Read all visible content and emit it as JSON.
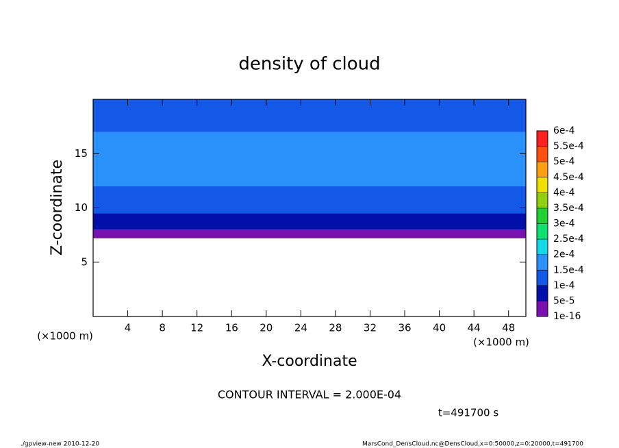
{
  "chart_data": {
    "type": "contour",
    "title": "density of cloud",
    "xlabel": "X-coordinate",
    "ylabel": "Z-coordinate",
    "xunit": "(×1000 m)",
    "yunit": "(×1000 m)",
    "xlim": [
      0,
      50
    ],
    "ylim": [
      0,
      20
    ],
    "xticks": [
      4,
      8,
      12,
      16,
      20,
      24,
      28,
      32,
      36,
      40,
      44,
      48
    ],
    "yticks": [
      5,
      10,
      15
    ],
    "z_edges": [
      7.2,
      8.0,
      9.5,
      12.0,
      17.0,
      20.0
    ],
    "values": [
      3e-05,
      7e-05,
      0.00011,
      0.00016,
      0.00012
    ],
    "levels": [
      {
        "value": 1e-16,
        "label": "1e-16"
      },
      {
        "value": 5e-05,
        "label": "5e-5"
      },
      {
        "value": 0.0001,
        "label": "1e-4"
      },
      {
        "value": 0.00015,
        "label": "1.5e-4"
      },
      {
        "value": 0.0002,
        "label": "2e-4"
      },
      {
        "value": 0.00025,
        "label": "2.5e-4"
      },
      {
        "value": 0.0003,
        "label": "3e-4"
      },
      {
        "value": 0.00035,
        "label": "3.5e-4"
      },
      {
        "value": 0.0004,
        "label": "4e-4"
      },
      {
        "value": 0.00045,
        "label": "4.5e-4"
      },
      {
        "value": 0.0005,
        "label": "5e-4"
      },
      {
        "value": 0.00055,
        "label": "5.5e-4"
      },
      {
        "value": 0.0006,
        "label": "6e-4"
      }
    ],
    "colors": [
      "#7a10b0",
      "#0010a8",
      "#1458e8",
      "#2a90fa",
      "#12d8e8",
      "#10e070",
      "#20d030",
      "#90d010",
      "#f0e000",
      "#ffa010",
      "#ff5010",
      "#ff2020"
    ],
    "contour_interval": "CONTOUR INTERVAL = 2.000E-04",
    "time": "t=491700 s",
    "footer_left": "./gpview-new  2010-12-20",
    "footer_right": "MarsCond_DensCloud.nc@DensCloud,x=0:50000,z=0:20000,t=491700"
  }
}
